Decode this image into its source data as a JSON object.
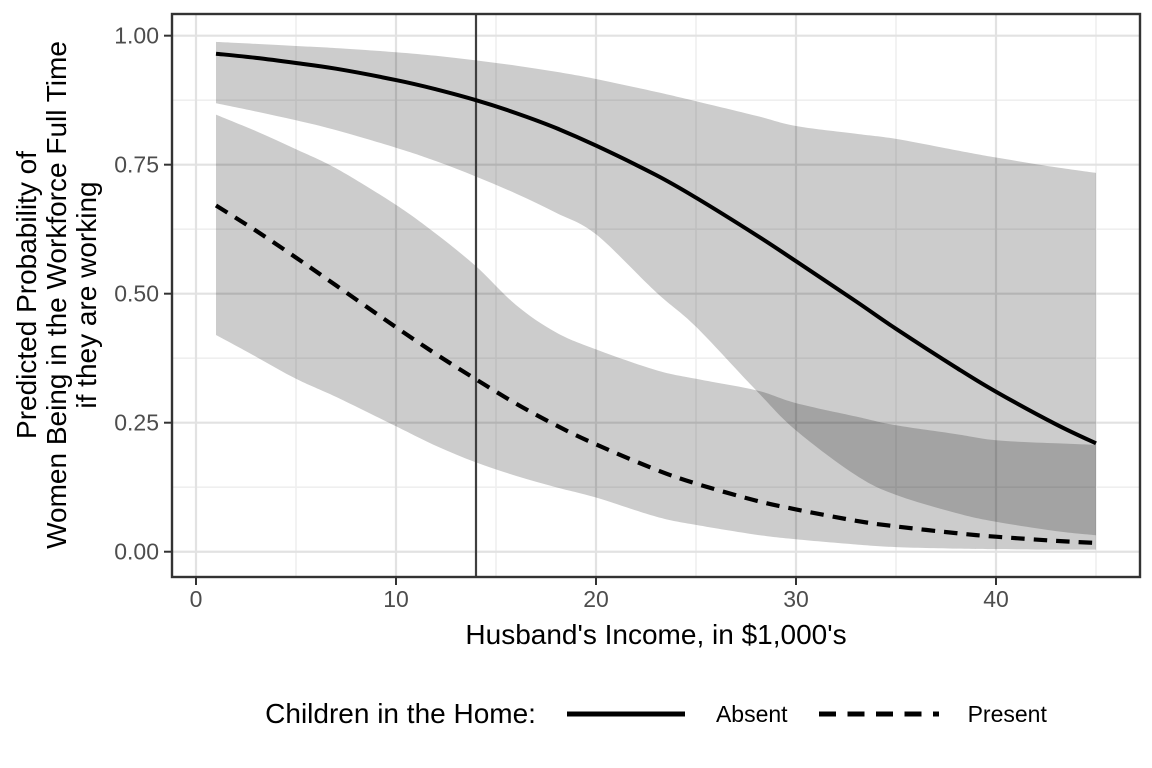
{
  "chart_data": {
    "type": "line",
    "title": "",
    "xlabel": "Husband's Income, in $1,000's",
    "ylabel": "Predicted Probability of\nWomen Being in the Workforce Full Time\nif they are working",
    "xlim": [
      -1.2,
      47.2
    ],
    "ylim": [
      -0.049,
      1.042
    ],
    "grid": true,
    "xticks": [
      0,
      10,
      20,
      30,
      40
    ],
    "xtick_labels": [
      "0",
      "10",
      "20",
      "30",
      "40"
    ],
    "xticks_minor": [
      5,
      15,
      25,
      35,
      45
    ],
    "yticks": [
      0.0,
      0.25,
      0.5,
      0.75,
      1.0
    ],
    "ytick_labels": [
      "0.00",
      "0.25",
      "0.50",
      "0.75",
      "1.00"
    ],
    "yticks_minor": [
      0.125,
      0.375,
      0.625,
      0.875
    ],
    "reference_line_x": 14,
    "x": [
      1,
      3,
      5,
      7,
      10,
      12,
      14,
      16,
      18,
      20,
      23,
      25,
      28,
      30,
      33,
      35,
      38,
      40,
      43,
      45
    ],
    "series": [
      {
        "name": "Absent",
        "style": "solid",
        "values": [
          0.965,
          0.957,
          0.947,
          0.936,
          0.914,
          0.896,
          0.875,
          0.85,
          0.821,
          0.787,
          0.73,
          0.686,
          0.614,
          0.563,
          0.485,
          0.432,
          0.357,
          0.31,
          0.247,
          0.21
        ],
        "ribbon_upper": [
          0.988,
          0.984,
          0.98,
          0.976,
          0.968,
          0.961,
          0.952,
          0.942,
          0.93,
          0.916,
          0.891,
          0.873,
          0.845,
          0.825,
          0.81,
          0.8,
          0.778,
          0.764,
          0.745,
          0.734
        ],
        "ribbon_lower": [
          0.869,
          0.853,
          0.836,
          0.817,
          0.783,
          0.757,
          0.727,
          0.694,
          0.657,
          0.615,
          0.503,
          0.436,
          0.313,
          0.235,
          0.148,
          0.11,
          0.075,
          0.058,
          0.04,
          0.032
        ]
      },
      {
        "name": "Present",
        "style": "dashed",
        "values": [
          0.671,
          0.622,
          0.57,
          0.516,
          0.435,
          0.383,
          0.334,
          0.287,
          0.245,
          0.208,
          0.159,
          0.132,
          0.099,
          0.082,
          0.06,
          0.049,
          0.036,
          0.029,
          0.021,
          0.017
        ],
        "ribbon_upper": [
          0.847,
          0.815,
          0.78,
          0.743,
          0.672,
          0.616,
          0.553,
          0.478,
          0.425,
          0.392,
          0.352,
          0.335,
          0.313,
          0.288,
          0.262,
          0.245,
          0.228,
          0.216,
          0.21,
          0.207
        ],
        "ribbon_lower": [
          0.42,
          0.378,
          0.335,
          0.3,
          0.243,
          0.205,
          0.173,
          0.147,
          0.125,
          0.105,
          0.068,
          0.052,
          0.033,
          0.024,
          0.014,
          0.009,
          0.006,
          0.005,
          0.004,
          0.004
        ]
      }
    ],
    "legend": {
      "title": "Children in the Home:",
      "entries": [
        "Absent",
        "Present"
      ],
      "position": "bottom"
    },
    "colors": {
      "line": "#000000",
      "ribbon": "rgba(0,0,0,0.20)",
      "grid_major": "#e2e2e2",
      "grid_minor": "#efefef",
      "panel_border": "#333333",
      "panel_bg": "#ffffff",
      "tick_label": "#4d4d4d",
      "tick_mark": "#333333",
      "ref_line": "#3f3f3f"
    }
  }
}
